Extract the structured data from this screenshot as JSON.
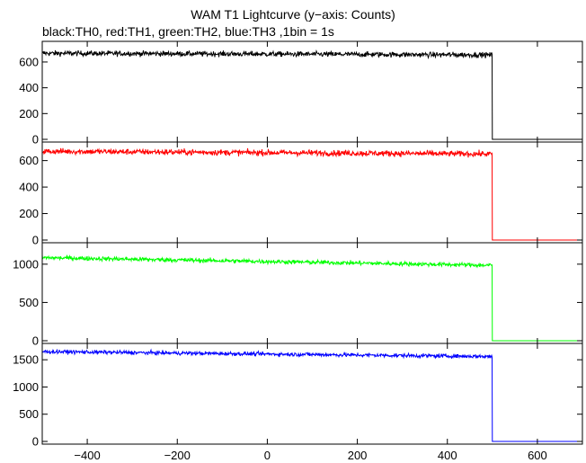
{
  "chart_data": {
    "type": "line",
    "title": "WAM T1 Lightcurve (y−axis: Counts)",
    "subtitle": "black:TH0, red:TH1, green:TH2, blue:TH3 ,1bin = 1s",
    "x_ticks": [
      -400,
      -200,
      0,
      200,
      400,
      600
    ],
    "xlim": [
      -500,
      700
    ],
    "data_end_x": 500,
    "panels": [
      {
        "id": "TH0",
        "color": "#000000",
        "ylim": [
          0,
          760
        ],
        "y_ticks": [
          0,
          200,
          400,
          600
        ],
        "level_start": 668,
        "level_end": 655,
        "noise": 20,
        "after_drop": 0
      },
      {
        "id": "TH1",
        "color": "#ff0000",
        "ylim": [
          0,
          740
        ],
        "y_ticks": [
          0,
          200,
          400,
          600
        ],
        "level_start": 670,
        "level_end": 650,
        "noise": 22,
        "after_drop": 0
      },
      {
        "id": "TH2",
        "color": "#00ff00",
        "ylim": [
          0,
          1280
        ],
        "y_ticks": [
          0,
          500,
          1000
        ],
        "level_start": 1085,
        "level_end": 985,
        "noise": 28,
        "after_drop": 0
      },
      {
        "id": "TH3",
        "color": "#0000ff",
        "ylim": [
          0,
          1800
        ],
        "y_ticks": [
          0,
          500,
          1000,
          1500
        ],
        "level_start": 1650,
        "level_end": 1560,
        "noise": 35,
        "after_drop": 0
      }
    ]
  }
}
